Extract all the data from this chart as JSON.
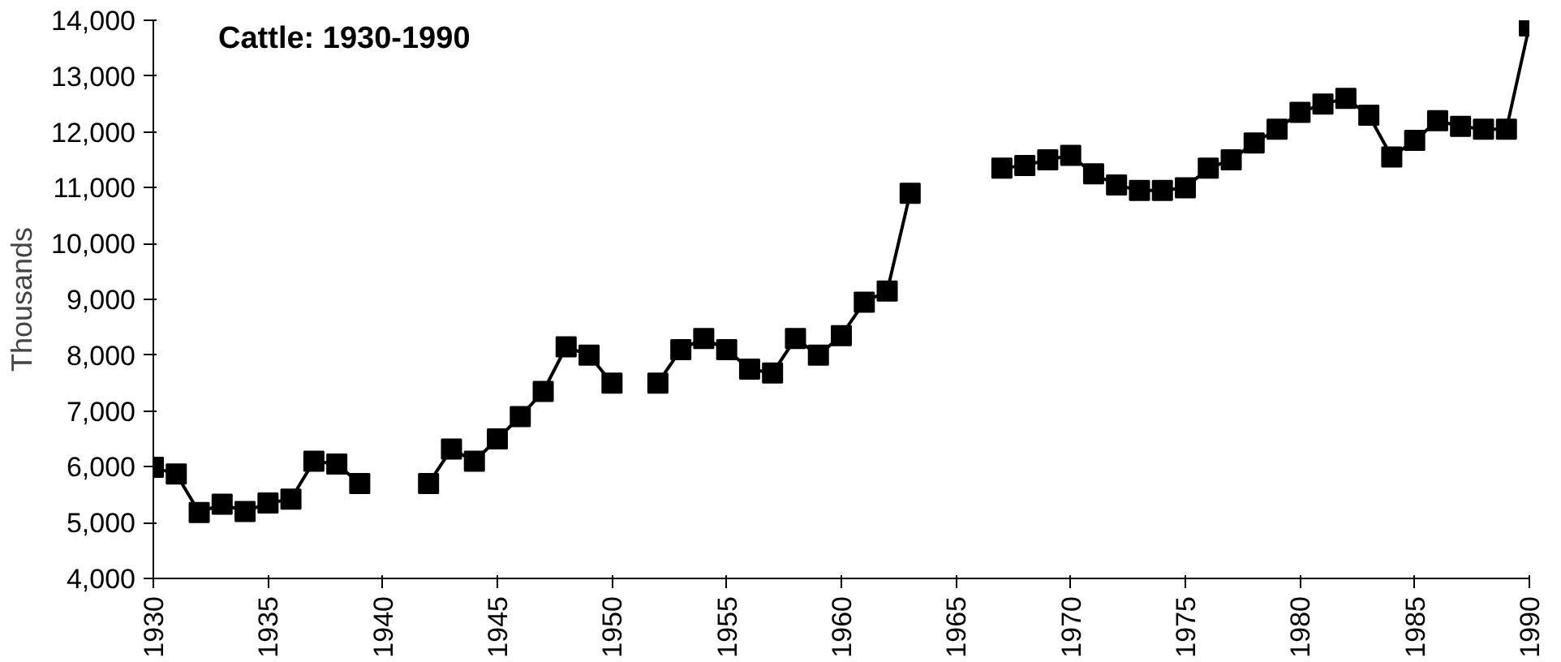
{
  "chart_data": {
    "type": "line",
    "title": "Cattle: 1930-1990",
    "ylabel": "Thousands",
    "x": [
      1930,
      1931,
      1932,
      1933,
      1934,
      1935,
      1936,
      1937,
      1938,
      1939,
      1940,
      1941,
      1942,
      1943,
      1944,
      1945,
      1946,
      1947,
      1948,
      1949,
      1950,
      1951,
      1952,
      1953,
      1954,
      1955,
      1956,
      1957,
      1958,
      1959,
      1960,
      1961,
      1962,
      1963,
      1964,
      1965,
      1966,
      1967,
      1968,
      1969,
      1970,
      1971,
      1972,
      1973,
      1974,
      1975,
      1976,
      1977,
      1978,
      1979,
      1980,
      1981,
      1982,
      1983,
      1984,
      1985,
      1986,
      1987,
      1988,
      1989,
      1990
    ],
    "series": [
      {
        "color": "#000000",
        "values": [
          5990,
          5870,
          5180,
          5330,
          5200,
          5350,
          5420,
          6100,
          6050,
          5700,
          null,
          null,
          5700,
          6320,
          6100,
          6500,
          6900,
          7350,
          8150,
          8000,
          7500,
          null,
          7500,
          8100,
          8300,
          8100,
          7750,
          7680,
          8300,
          8000,
          8350,
          8950,
          9150,
          10900,
          null,
          null,
          null,
          11350,
          11400,
          11500,
          11580,
          11250,
          11050,
          10950,
          10950,
          11000,
          11350,
          11500,
          11800,
          12050,
          12350,
          12500,
          12600,
          12300,
          11550,
          11850,
          12200,
          12100,
          12050,
          12050,
          13900
        ]
      }
    ],
    "xlim": [
      1930,
      1990
    ],
    "xticks": [
      1930,
      1935,
      1940,
      1945,
      1950,
      1955,
      1960,
      1965,
      1970,
      1975,
      1980,
      1985,
      1990
    ],
    "ylim": [
      4000,
      14000
    ],
    "yticks": [
      {
        "value": 4000,
        "label": "4,000"
      },
      {
        "value": 5000,
        "label": "5,000"
      },
      {
        "value": 6000,
        "label": "6,000"
      },
      {
        "value": 7000,
        "label": "7,000"
      },
      {
        "value": 8000,
        "label": "8,000"
      },
      {
        "value": 9000,
        "label": "9,000"
      },
      {
        "value": 10000,
        "label": "10,000"
      },
      {
        "value": 11000,
        "label": "11,000"
      },
      {
        "value": 12000,
        "label": "12,000"
      },
      {
        "value": 13000,
        "label": "13,000"
      },
      {
        "value": 14000,
        "label": "14,000"
      }
    ],
    "grid": false,
    "marker": "square",
    "line_style": "solid"
  }
}
